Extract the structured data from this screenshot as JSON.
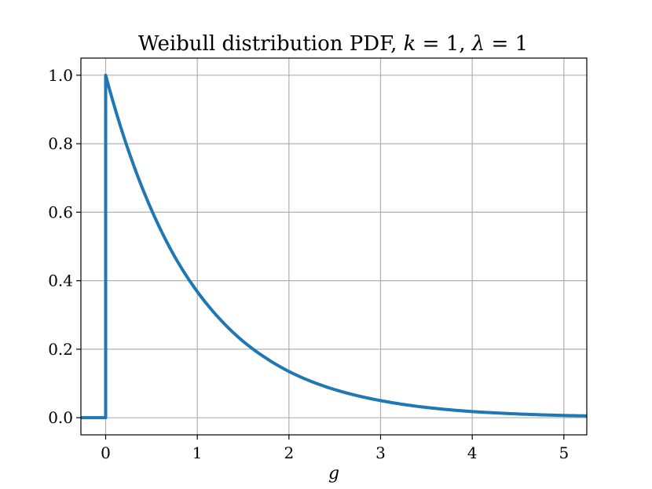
{
  "chart_data": {
    "type": "line",
    "title_parts": {
      "prefix": "Weibull distribution PDF, ",
      "k_symbol": "k",
      "k_value": " = 1, ",
      "lambda_symbol": "λ",
      "lambda_value": " = 1"
    },
    "xlabel": "g",
    "ylabel": "",
    "xlim": [
      -0.27,
      5.25
    ],
    "ylim": [
      -0.05,
      1.05
    ],
    "xticks": [
      0,
      1,
      2,
      3,
      4,
      5
    ],
    "xtick_labels": [
      "0",
      "1",
      "2",
      "3",
      "4",
      "5"
    ],
    "yticks": [
      0.0,
      0.2,
      0.4,
      0.6,
      0.8,
      1.0
    ],
    "ytick_labels": [
      "0.0",
      "0.2",
      "0.4",
      "0.6",
      "0.8",
      "1.0"
    ],
    "grid": true,
    "line_color": "#1f77b4",
    "series": [
      {
        "x": [
          -0.27,
          0.0,
          0.0,
          0.25,
          0.5,
          0.75,
          1.0,
          1.25,
          1.5,
          1.75,
          2.0,
          2.5,
          3.0,
          3.5,
          4.0,
          4.5,
          5.0,
          5.25
        ],
        "values": [
          0.0,
          0.0,
          1.0,
          0.779,
          0.607,
          0.472,
          0.368,
          0.287,
          0.223,
          0.174,
          0.135,
          0.082,
          0.05,
          0.03,
          0.018,
          0.011,
          0.0067,
          0.0052
        ]
      }
    ]
  }
}
